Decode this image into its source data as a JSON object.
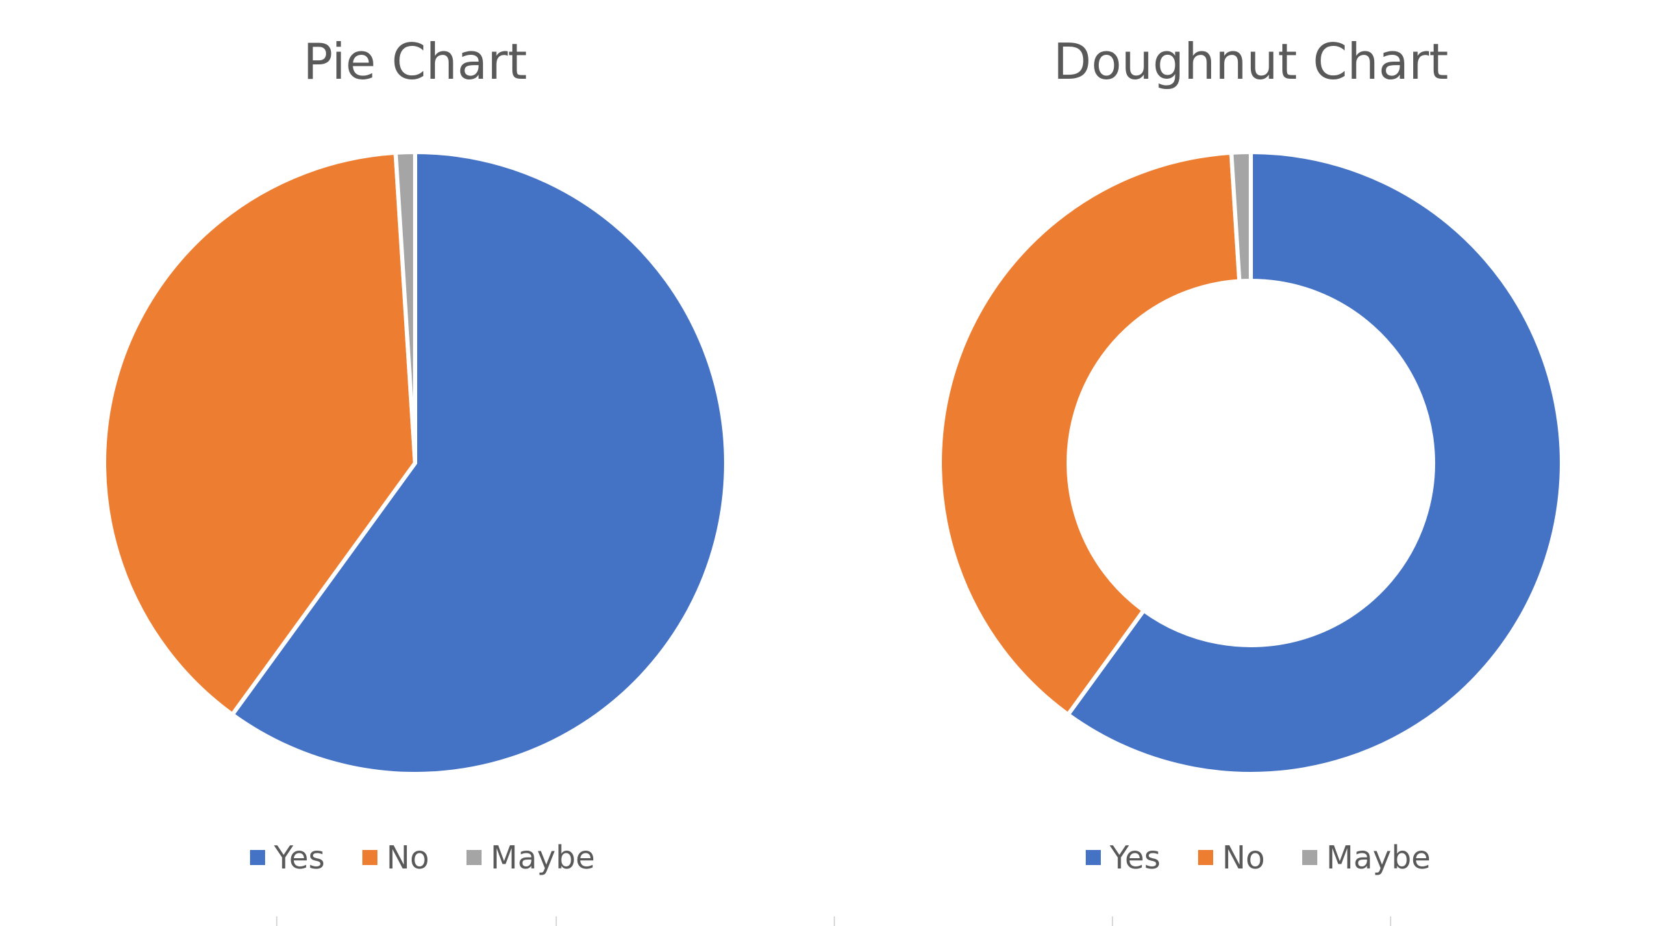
{
  "chart_data": [
    {
      "type": "pie",
      "title": "Pie Chart",
      "categories": [
        "Yes",
        "No",
        "Maybe"
      ],
      "values": [
        60,
        39,
        1
      ],
      "colors": [
        "#4472c4",
        "#ed7d31",
        "#a5a5a5"
      ],
      "legend_position": "bottom"
    },
    {
      "type": "doughnut",
      "title": "Doughnut Chart",
      "categories": [
        "Yes",
        "No",
        "Maybe"
      ],
      "values": [
        60,
        39,
        1
      ],
      "colors": [
        "#4472c4",
        "#ed7d31",
        "#a5a5a5"
      ],
      "legend_position": "bottom"
    }
  ]
}
